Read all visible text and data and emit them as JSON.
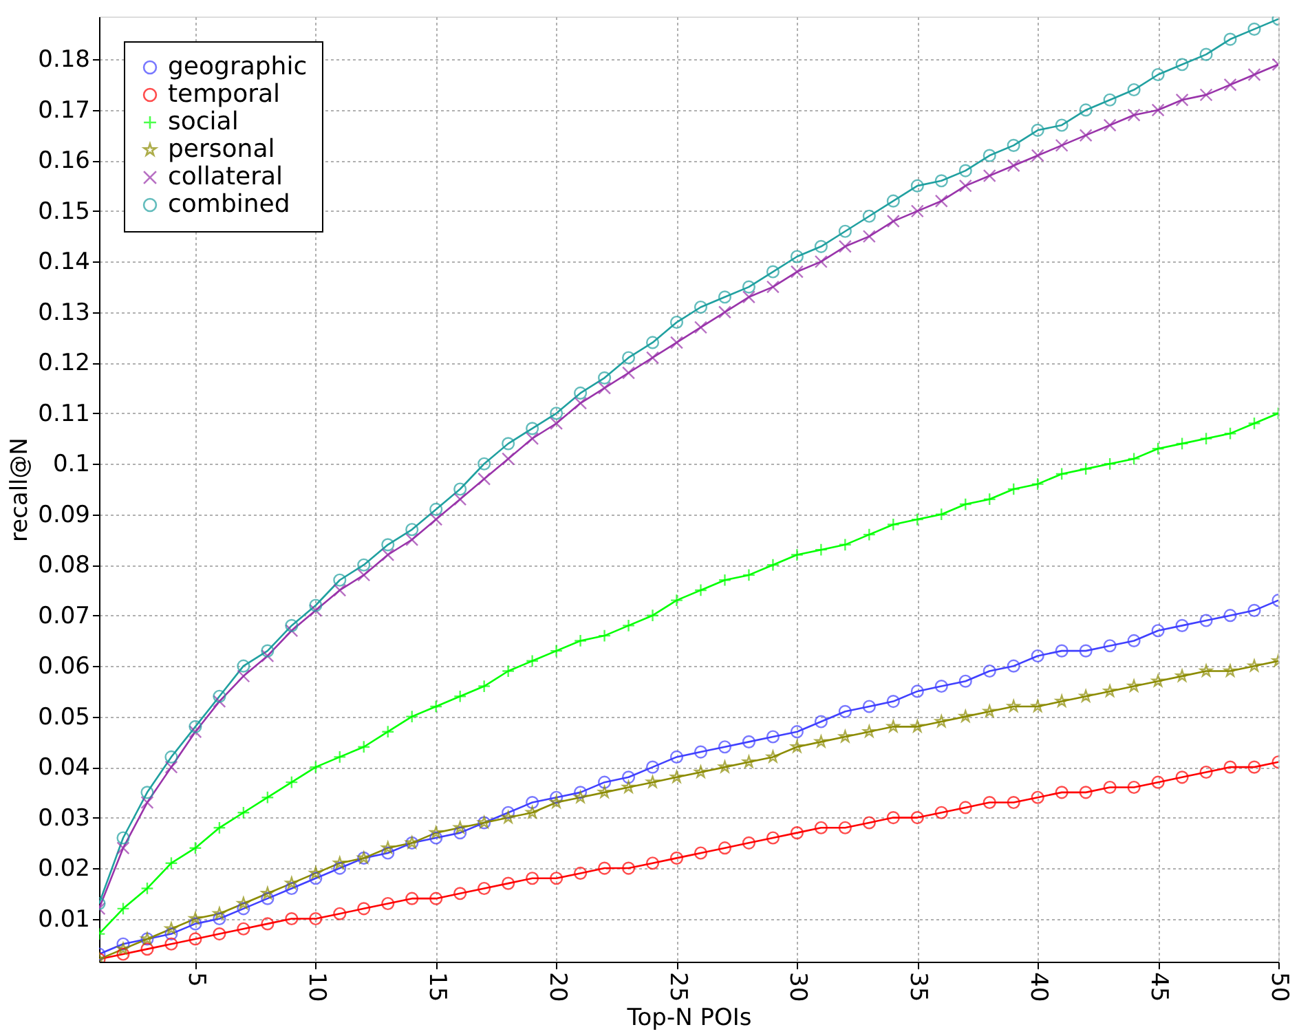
{
  "chart_data": {
    "type": "line",
    "xlabel": "Top-N POIs",
    "ylabel": "recall@N",
    "x": [
      1,
      2,
      3,
      4,
      5,
      6,
      7,
      8,
      9,
      10,
      11,
      12,
      13,
      14,
      15,
      16,
      17,
      18,
      19,
      20,
      21,
      22,
      23,
      24,
      25,
      26,
      27,
      28,
      29,
      30,
      31,
      32,
      33,
      34,
      35,
      36,
      37,
      38,
      39,
      40,
      41,
      42,
      43,
      44,
      45,
      46,
      47,
      48,
      49,
      50
    ],
    "series": [
      {
        "name": "geographic",
        "color": "#4040ff",
        "marker": "circle",
        "values": [
          0.003,
          0.005,
          0.006,
          0.007,
          0.009,
          0.01,
          0.012,
          0.014,
          0.016,
          0.018,
          0.02,
          0.022,
          0.023,
          0.025,
          0.026,
          0.027,
          0.029,
          0.031,
          0.033,
          0.034,
          0.035,
          0.037,
          0.038,
          0.04,
          0.042,
          0.043,
          0.044,
          0.045,
          0.046,
          0.047,
          0.049,
          0.051,
          0.052,
          0.053,
          0.055,
          0.056,
          0.057,
          0.059,
          0.06,
          0.062,
          0.063,
          0.063,
          0.064,
          0.065,
          0.067,
          0.068,
          0.069,
          0.07,
          0.071,
          0.073
        ]
      },
      {
        "name": "temporal",
        "color": "#ff0000",
        "marker": "circle",
        "values": [
          0.002,
          0.003,
          0.004,
          0.005,
          0.006,
          0.007,
          0.008,
          0.009,
          0.01,
          0.01,
          0.011,
          0.012,
          0.013,
          0.014,
          0.014,
          0.015,
          0.016,
          0.017,
          0.018,
          0.018,
          0.019,
          0.02,
          0.02,
          0.021,
          0.022,
          0.023,
          0.024,
          0.025,
          0.026,
          0.027,
          0.028,
          0.028,
          0.029,
          0.03,
          0.03,
          0.031,
          0.032,
          0.033,
          0.033,
          0.034,
          0.035,
          0.035,
          0.036,
          0.036,
          0.037,
          0.038,
          0.039,
          0.04,
          0.04,
          0.041
        ]
      },
      {
        "name": "social",
        "color": "#00ff00",
        "marker": "cross",
        "values": [
          0.007,
          0.012,
          0.016,
          0.021,
          0.024,
          0.028,
          0.031,
          0.034,
          0.037,
          0.04,
          0.042,
          0.044,
          0.047,
          0.05,
          0.052,
          0.054,
          0.056,
          0.059,
          0.061,
          0.063,
          0.065,
          0.066,
          0.068,
          0.07,
          0.073,
          0.075,
          0.077,
          0.078,
          0.08,
          0.082,
          0.083,
          0.084,
          0.086,
          0.088,
          0.089,
          0.09,
          0.092,
          0.093,
          0.095,
          0.096,
          0.098,
          0.099,
          0.1,
          0.101,
          0.103,
          0.104,
          0.105,
          0.106,
          0.108,
          0.11
        ]
      },
      {
        "name": "personal",
        "color": "#8b8b00",
        "marker": "star",
        "values": [
          0.002,
          0.004,
          0.006,
          0.008,
          0.01,
          0.011,
          0.013,
          0.015,
          0.017,
          0.019,
          0.021,
          0.022,
          0.024,
          0.025,
          0.027,
          0.028,
          0.029,
          0.03,
          0.031,
          0.033,
          0.034,
          0.035,
          0.036,
          0.037,
          0.038,
          0.039,
          0.04,
          0.041,
          0.042,
          0.044,
          0.045,
          0.046,
          0.047,
          0.048,
          0.048,
          0.049,
          0.05,
          0.051,
          0.052,
          0.052,
          0.053,
          0.054,
          0.055,
          0.056,
          0.057,
          0.058,
          0.059,
          0.059,
          0.06,
          0.061
        ]
      },
      {
        "name": "collateral",
        "color": "#9933aa",
        "marker": "x",
        "values": [
          0.012,
          0.024,
          0.033,
          0.04,
          0.047,
          0.053,
          0.058,
          0.062,
          0.067,
          0.071,
          0.075,
          0.078,
          0.082,
          0.085,
          0.089,
          0.093,
          0.097,
          0.101,
          0.105,
          0.108,
          0.112,
          0.115,
          0.118,
          0.121,
          0.124,
          0.127,
          0.13,
          0.133,
          0.135,
          0.138,
          0.14,
          0.143,
          0.145,
          0.148,
          0.15,
          0.152,
          0.155,
          0.157,
          0.159,
          0.161,
          0.163,
          0.165,
          0.167,
          0.169,
          0.17,
          0.172,
          0.173,
          0.175,
          0.177,
          0.179
        ]
      },
      {
        "name": "combined",
        "color": "#20a0a0",
        "marker": "circle",
        "values": [
          0.013,
          0.026,
          0.035,
          0.042,
          0.048,
          0.054,
          0.06,
          0.063,
          0.068,
          0.072,
          0.077,
          0.08,
          0.084,
          0.087,
          0.091,
          0.095,
          0.1,
          0.104,
          0.107,
          0.11,
          0.114,
          0.117,
          0.121,
          0.124,
          0.128,
          0.131,
          0.133,
          0.135,
          0.138,
          0.141,
          0.143,
          0.146,
          0.149,
          0.152,
          0.155,
          0.156,
          0.158,
          0.161,
          0.163,
          0.166,
          0.167,
          0.17,
          0.172,
          0.174,
          0.177,
          0.179,
          0.181,
          0.184,
          0.186,
          0.188
        ]
      }
    ],
    "xlim": [
      1,
      50
    ],
    "xticks": [
      5,
      10,
      15,
      20,
      25,
      30,
      35,
      40,
      45,
      50
    ],
    "ylim": [
      0.0015,
      0.1885
    ],
    "yticks": [
      0.01,
      0.02,
      0.03,
      0.04,
      0.05,
      0.06,
      0.07,
      0.08,
      0.09,
      0.1,
      0.11,
      0.12,
      0.13,
      0.14,
      0.15,
      0.16,
      0.17,
      0.18
    ],
    "grid": true,
    "legend": "top left",
    "line_style": "solid"
  }
}
